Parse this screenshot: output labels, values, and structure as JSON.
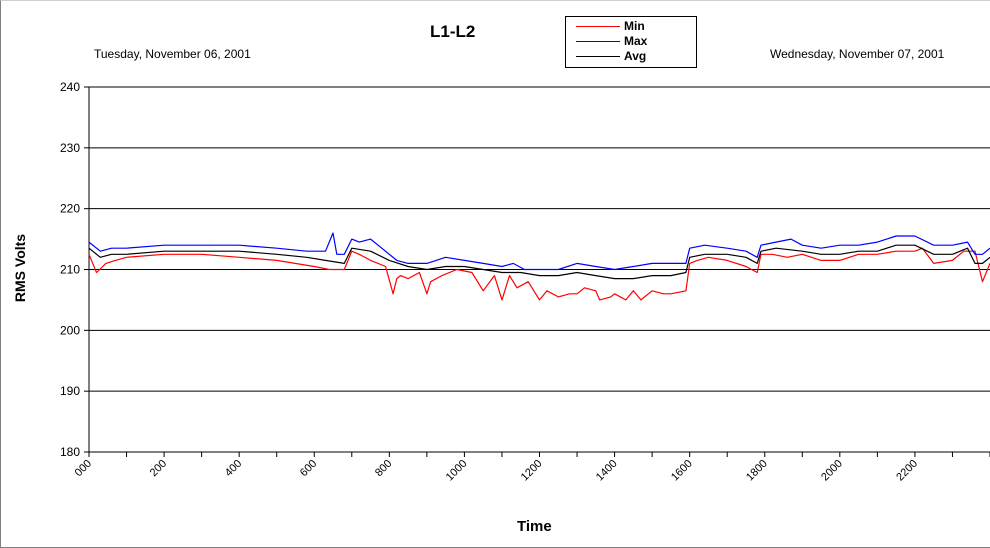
{
  "chart_data": {
    "type": "line",
    "title": "L1-L2",
    "date_left": "Tuesday, November 06, 2001",
    "date_right": "Wednesday, November 07, 2001",
    "xlabel": "Time",
    "ylabel": "RMS Volts",
    "ylim": [
      180,
      240
    ],
    "yticks": [
      "180",
      "190",
      "200",
      "210",
      "220",
      "230",
      "240"
    ],
    "xticks": [
      "000",
      "200",
      "400",
      "600",
      "800",
      "1000",
      "1200",
      "1400",
      "1600",
      "1800",
      "2000",
      "2200"
    ],
    "xrange_hours": [
      0,
      24
    ],
    "grid": "horizontal",
    "legend_position": "top-center",
    "series": [
      {
        "name": "Min",
        "color": "#ff0000",
        "x": [
          0,
          0.2,
          0.45,
          0.7,
          1,
          2,
          3,
          4,
          5,
          6,
          6.4,
          6.8,
          7.0,
          7.2,
          7.5,
          7.9,
          8.1,
          8.2,
          8.3,
          8.5,
          8.8,
          9.0,
          9.1,
          9.4,
          9.8,
          10.2,
          10.5,
          10.8,
          11.0,
          11.2,
          11.4,
          11.7,
          12.0,
          12.2,
          12.5,
          12.8,
          13.0,
          13.2,
          13.5,
          13.6,
          13.9,
          14.0,
          14.3,
          14.5,
          14.7,
          15.0,
          15.3,
          15.5,
          15.9,
          16.0,
          16.2,
          16.5,
          17.0,
          17.5,
          17.8,
          17.9,
          18.2,
          18.6,
          19.0,
          19.5,
          20.0,
          20.5,
          21.0,
          21.5,
          22.0,
          22.2,
          22.5,
          23.0,
          23.3,
          23.6,
          23.8,
          24.0
        ],
        "y": [
          212.5,
          209.5,
          211,
          211.5,
          212,
          212.5,
          212.5,
          212,
          211.5,
          210.5,
          210,
          210,
          213,
          212.5,
          211.5,
          210.5,
          206,
          208.5,
          209,
          208.5,
          209.5,
          206,
          208,
          209,
          210,
          209.5,
          206.5,
          209,
          205,
          209,
          207,
          208,
          205,
          206.5,
          205.5,
          206,
          206,
          207,
          206.5,
          205,
          205.5,
          206,
          205,
          206.5,
          205,
          206.5,
          206,
          206,
          206.5,
          211,
          211.5,
          212,
          211.5,
          210.5,
          209.5,
          212.5,
          212.5,
          212,
          212.5,
          211.5,
          211.5,
          212.5,
          212.5,
          213,
          213,
          213.5,
          211,
          211.5,
          213,
          213,
          208,
          211
        ]
      },
      {
        "name": "Max",
        "color": "#0000ff",
        "x": [
          0,
          0.3,
          0.6,
          1,
          2,
          3,
          4,
          5,
          5.8,
          6.3,
          6.5,
          6.6,
          6.8,
          7.0,
          7.2,
          7.5,
          7.8,
          8.2,
          8.5,
          9.0,
          9.5,
          10.0,
          10.5,
          11.0,
          11.3,
          11.6,
          12.0,
          12.5,
          13.0,
          13.5,
          14.0,
          14.5,
          15.0,
          15.5,
          15.9,
          16.0,
          16.4,
          17.0,
          17.5,
          17.8,
          17.9,
          18.3,
          18.7,
          19.0,
          19.5,
          20.0,
          20.5,
          21.0,
          21.5,
          22.0,
          22.5,
          23.0,
          23.4,
          23.6,
          23.8,
          24.0
        ],
        "y": [
          214.5,
          213,
          213.5,
          213.5,
          214,
          214,
          214,
          213.5,
          213,
          213,
          216,
          212.5,
          212.5,
          215,
          214.5,
          215,
          213.5,
          211.5,
          211,
          211,
          212,
          211.5,
          211,
          210.5,
          211,
          210,
          210,
          210,
          211,
          210.5,
          210,
          210.5,
          211,
          211,
          211,
          213.5,
          214,
          213.5,
          213,
          212,
          214,
          214.5,
          215,
          214,
          213.5,
          214,
          214,
          214.5,
          215.5,
          215.5,
          214,
          214,
          214.5,
          212.5,
          212.5,
          213.5
        ]
      },
      {
        "name": "Avg",
        "color": "#000000",
        "x": [
          0,
          0.3,
          0.6,
          1,
          2,
          3,
          4,
          5,
          5.8,
          6.3,
          6.8,
          7.0,
          7.5,
          8.0,
          8.5,
          9.0,
          9.5,
          10.0,
          10.5,
          11.0,
          11.5,
          12.0,
          12.5,
          13.0,
          13.5,
          14.0,
          14.5,
          15.0,
          15.5,
          15.9,
          16.0,
          16.4,
          17.0,
          17.5,
          17.8,
          17.9,
          18.3,
          19.0,
          19.5,
          20.0,
          20.5,
          21.0,
          21.5,
          22.0,
          22.5,
          23.0,
          23.4,
          23.6,
          23.8,
          24.0
        ],
        "y": [
          213.5,
          212,
          212.5,
          212.5,
          213,
          213,
          213,
          212.5,
          212,
          211.5,
          211,
          213.5,
          213,
          211.5,
          210.5,
          210,
          210.5,
          210.5,
          210,
          209.5,
          209.5,
          209,
          209,
          209.5,
          209,
          208.5,
          208.5,
          209,
          209,
          209.5,
          212,
          212.5,
          212.5,
          212,
          211,
          213,
          213.5,
          213,
          212.5,
          212.5,
          213,
          213,
          214,
          214,
          212.5,
          212.5,
          213.5,
          211,
          211,
          212
        ]
      }
    ]
  }
}
